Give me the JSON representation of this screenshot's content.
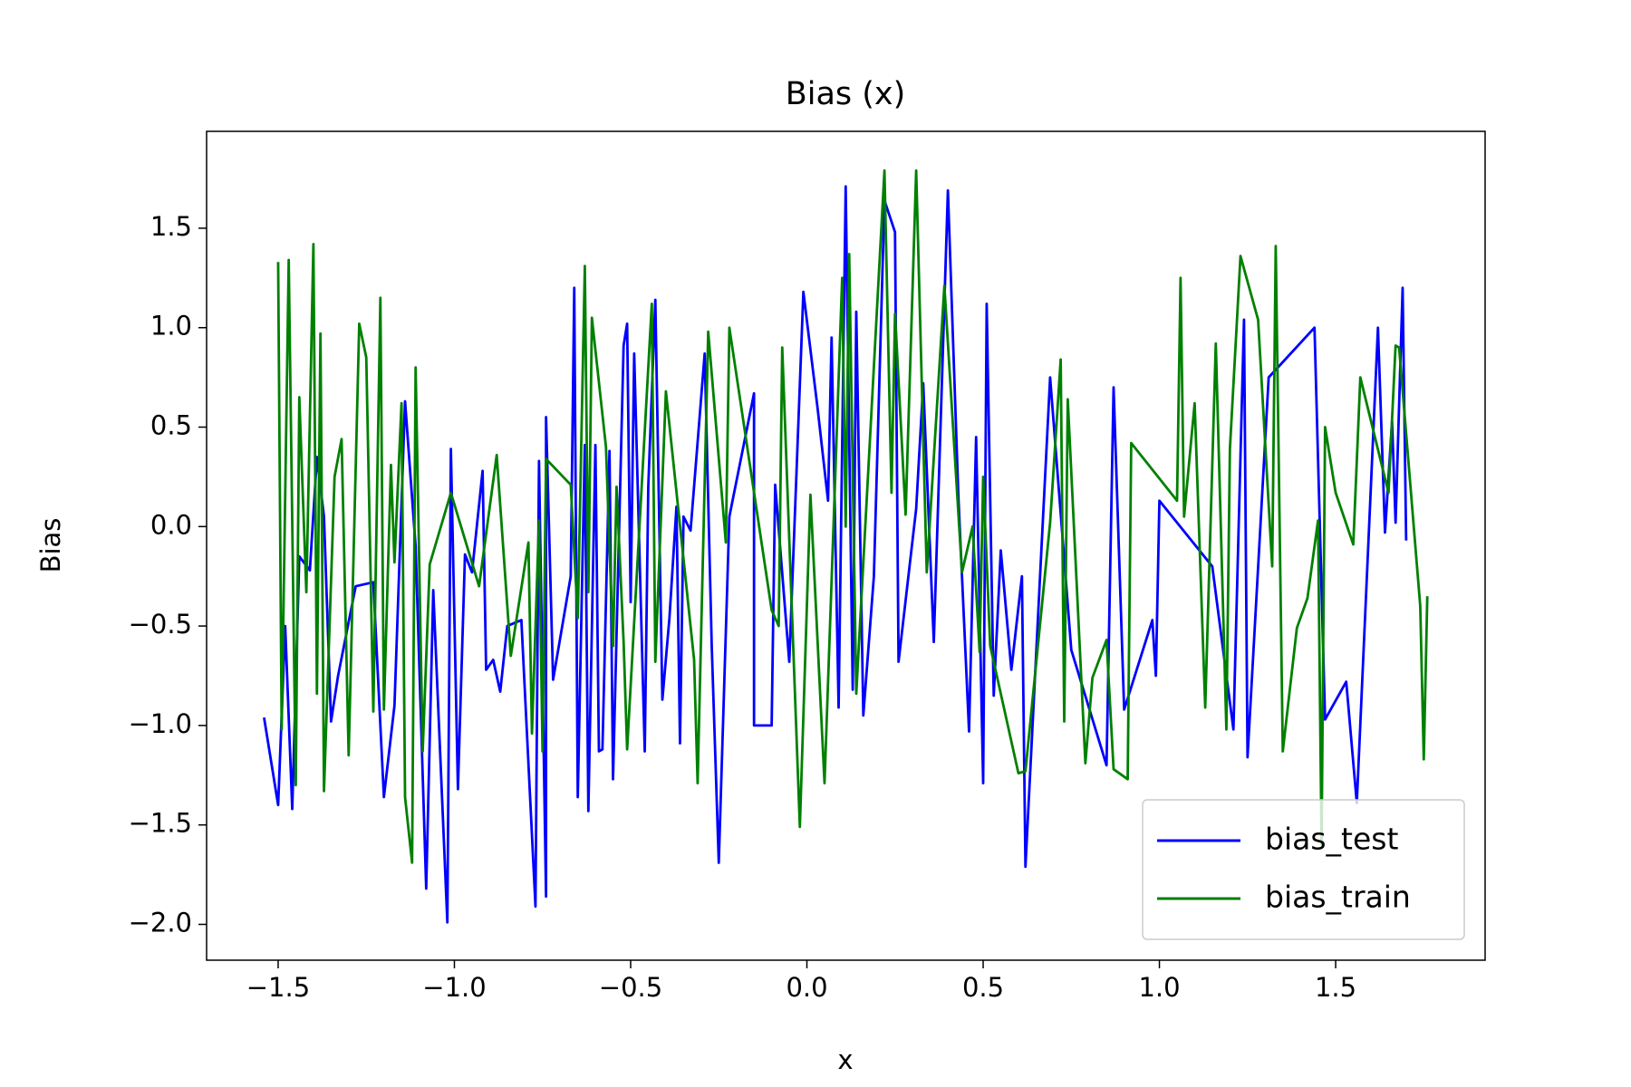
{
  "chart_data": {
    "type": "line",
    "title": "Bias (x)",
    "xlabel": "x",
    "ylabel": "Bias",
    "xlim": [
      -1.703,
      1.924
    ],
    "ylim": [
      -2.18,
      1.987
    ],
    "xticks": [
      {
        "value": -1.5,
        "label": "−1.5"
      },
      {
        "value": -1.0,
        "label": "−1.0"
      },
      {
        "value": -0.5,
        "label": "−0.5"
      },
      {
        "value": 0.0,
        "label": "0.0"
      },
      {
        "value": 0.5,
        "label": "0.5"
      },
      {
        "value": 1.0,
        "label": "1.0"
      },
      {
        "value": 1.5,
        "label": "1.5"
      }
    ],
    "yticks": [
      {
        "value": -2.0,
        "label": "−2.0"
      },
      {
        "value": -1.5,
        "label": "−1.5"
      },
      {
        "value": -1.0,
        "label": "−1.0"
      },
      {
        "value": -0.5,
        "label": "−0.5"
      },
      {
        "value": 0.0,
        "label": "0.0"
      },
      {
        "value": 0.5,
        "label": "0.5"
      },
      {
        "value": 1.0,
        "label": "1.0"
      },
      {
        "value": 1.5,
        "label": "1.5"
      }
    ],
    "grid": false,
    "legend": "lower right",
    "series": [
      {
        "name": "bias_test",
        "color": "#0000ff",
        "x": [
          -1.54,
          -1.5,
          -1.48,
          -1.46,
          -1.44,
          -1.41,
          -1.39,
          -1.37,
          -1.35,
          -1.33,
          -1.28,
          -1.23,
          -1.2,
          -1.17,
          -1.14,
          -1.11,
          -1.08,
          -1.06,
          -1.02,
          -1.01,
          -0.99,
          -0.97,
          -0.95,
          -0.92,
          -0.91,
          -0.89,
          -0.87,
          -0.85,
          -0.81,
          -0.77,
          -0.76,
          -0.74,
          -0.74,
          -0.72,
          -0.67,
          -0.66,
          -0.65,
          -0.63,
          -0.62,
          -0.6,
          -0.59,
          -0.58,
          -0.56,
          -0.55,
          -0.52,
          -0.51,
          -0.5,
          -0.49,
          -0.46,
          -0.45,
          -0.43,
          -0.41,
          -0.39,
          -0.37,
          -0.36,
          -0.35,
          -0.33,
          -0.29,
          -0.27,
          -0.25,
          -0.22,
          -0.15,
          -0.15,
          -0.1,
          -0.09,
          -0.05,
          -0.01,
          0.03,
          0.06,
          0.07,
          0.09,
          0.11,
          0.13,
          0.14,
          0.16,
          0.19,
          0.22,
          0.25,
          0.26,
          0.31,
          0.33,
          0.36,
          0.4,
          0.43,
          0.46,
          0.48,
          0.5,
          0.51,
          0.53,
          0.55,
          0.58,
          0.61,
          0.62,
          0.66,
          0.69,
          0.75,
          0.85,
          0.87,
          0.9,
          0.98,
          0.99,
          1.0,
          1.15,
          1.21,
          1.24,
          1.25,
          1.31,
          1.44,
          1.47,
          1.53,
          1.56,
          1.62,
          1.64,
          1.66,
          1.67,
          1.69,
          1.7
        ],
        "values": [
          -0.96,
          -1.4,
          -0.5,
          -1.42,
          -0.15,
          -0.22,
          0.35,
          0.05,
          -0.98,
          -0.75,
          -0.3,
          -0.28,
          -1.36,
          -0.9,
          0.63,
          -0.1,
          -1.82,
          -0.32,
          -1.99,
          0.39,
          -1.32,
          -0.14,
          -0.23,
          0.28,
          -0.72,
          -0.67,
          -0.83,
          -0.5,
          -0.47,
          -1.91,
          0.33,
          -1.86,
          0.55,
          -0.77,
          -0.25,
          1.2,
          -1.36,
          0.41,
          -1.43,
          0.41,
          -1.13,
          -1.12,
          0.38,
          -1.27,
          0.91,
          1.02,
          -0.38,
          0.87,
          -1.13,
          0.2,
          1.14,
          -0.87,
          -0.46,
          0.1,
          -1.09,
          0.05,
          -0.02,
          0.87,
          -0.6,
          -1.69,
          0.05,
          0.67,
          -1.0,
          -1.0,
          0.21,
          -0.68,
          1.18,
          0.6,
          0.13,
          0.95,
          -0.91,
          1.71,
          -0.82,
          1.08,
          -0.95,
          -0.25,
          1.64,
          1.48,
          -0.68,
          0.09,
          0.72,
          -0.58,
          1.69,
          0.14,
          -1.03,
          0.45,
          -1.29,
          1.12,
          -0.85,
          -0.12,
          -0.72,
          -0.25,
          -1.71,
          -0.3,
          0.75,
          -0.62,
          -1.2,
          0.7,
          -0.92,
          -0.47,
          -0.75,
          0.13,
          -0.2,
          -1.02,
          1.04,
          -1.16,
          0.75,
          1.0,
          -0.97,
          -0.78,
          -1.39,
          1.0,
          -0.03,
          0.53,
          0.02,
          1.2,
          -0.07
        ]
      },
      {
        "name": "bias_train",
        "color": "#008000",
        "x": [
          -1.5,
          -1.49,
          -1.47,
          -1.45,
          -1.44,
          -1.42,
          -1.4,
          -1.39,
          -1.38,
          -1.37,
          -1.34,
          -1.32,
          -1.3,
          -1.27,
          -1.25,
          -1.23,
          -1.21,
          -1.2,
          -1.18,
          -1.17,
          -1.15,
          -1.14,
          -1.12,
          -1.11,
          -1.09,
          -1.07,
          -1.01,
          -0.93,
          -0.88,
          -0.84,
          -0.79,
          -0.78,
          -0.76,
          -0.75,
          -0.74,
          -0.67,
          -0.65,
          -0.63,
          -0.62,
          -0.61,
          -0.57,
          -0.55,
          -0.54,
          -0.52,
          -0.51,
          -0.44,
          -0.43,
          -0.4,
          -0.32,
          -0.31,
          -0.28,
          -0.23,
          -0.22,
          -0.1,
          -0.08,
          -0.07,
          -0.02,
          0.01,
          0.05,
          0.1,
          0.11,
          0.12,
          0.14,
          0.22,
          0.24,
          0.25,
          0.28,
          0.31,
          0.34,
          0.39,
          0.44,
          0.47,
          0.49,
          0.5,
          0.52,
          0.6,
          0.62,
          0.69,
          0.72,
          0.73,
          0.74,
          0.79,
          0.81,
          0.85,
          0.87,
          0.91,
          0.92,
          1.05,
          1.06,
          1.07,
          1.1,
          1.13,
          1.16,
          1.19,
          1.2,
          1.23,
          1.28,
          1.32,
          1.33,
          1.35,
          1.39,
          1.42,
          1.45,
          1.46,
          1.47,
          1.5,
          1.55,
          1.57,
          1.65,
          1.67,
          1.68,
          1.74,
          1.75,
          1.76
        ],
        "values": [
          1.33,
          -1.02,
          1.34,
          -1.3,
          0.65,
          -0.33,
          1.42,
          -0.84,
          0.97,
          -1.33,
          0.25,
          0.44,
          -1.15,
          1.02,
          0.85,
          -0.93,
          1.15,
          -0.92,
          0.31,
          -0.18,
          0.62,
          -1.36,
          -1.69,
          0.8,
          -1.13,
          -0.19,
          0.17,
          -0.3,
          0.36,
          -0.65,
          -0.08,
          -1.04,
          0.03,
          -1.13,
          0.34,
          0.21,
          -0.46,
          1.31,
          -0.33,
          1.05,
          0.4,
          -0.6,
          0.2,
          -0.58,
          -1.12,
          1.12,
          -0.68,
          0.68,
          -0.67,
          -1.29,
          0.98,
          -0.08,
          1.0,
          -0.42,
          -0.5,
          0.9,
          -1.51,
          0.16,
          -1.29,
          1.25,
          0.0,
          1.37,
          -0.84,
          1.79,
          0.17,
          1.07,
          0.06,
          1.79,
          -0.23,
          1.21,
          -0.23,
          0.0,
          -0.63,
          0.25,
          -0.6,
          -1.24,
          -1.23,
          0.02,
          0.84,
          -0.98,
          0.64,
          -1.19,
          -0.76,
          -0.57,
          -1.22,
          -1.27,
          0.42,
          0.13,
          1.25,
          0.05,
          0.62,
          -0.91,
          0.92,
          -1.02,
          0.39,
          1.36,
          1.04,
          -0.2,
          1.41,
          -1.13,
          -0.51,
          -0.36,
          0.03,
          -1.6,
          0.5,
          0.17,
          -0.09,
          0.75,
          0.17,
          0.91,
          0.9,
          -0.4,
          -1.17,
          -0.35
        ]
      }
    ]
  }
}
